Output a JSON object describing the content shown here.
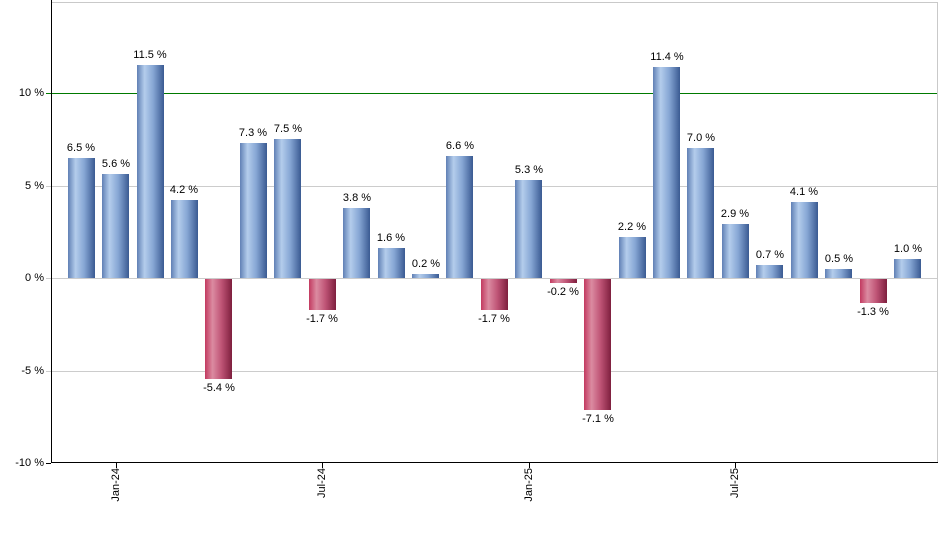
{
  "chart_data": {
    "type": "bar",
    "title": "",
    "xlabel": "",
    "ylabel": "",
    "ylim": [
      -10,
      14.9
    ],
    "grid": true,
    "legend": false,
    "y_ticks": [
      {
        "value": 10,
        "label": "10 %"
      },
      {
        "value": 5,
        "label": "5 %"
      },
      {
        "value": 0,
        "label": "0 %"
      },
      {
        "value": -5,
        "label": "-5 %"
      },
      {
        "value": -10,
        "label": "-10 %"
      }
    ],
    "x_ticks": [
      {
        "index": 1,
        "label": "Jan-24"
      },
      {
        "index": 7,
        "label": "Jul-24"
      },
      {
        "index": 13,
        "label": "Jan-25"
      },
      {
        "index": 19,
        "label": "Jul-25"
      }
    ],
    "reference_line": {
      "value": 10
    },
    "points": [
      {
        "month": "Dec-23",
        "value": 6.5,
        "label": "6.5 %"
      },
      {
        "month": "Jan-24",
        "value": 5.6,
        "label": "5.6 %"
      },
      {
        "month": "Feb-24",
        "value": 11.5,
        "label": "11.5 %"
      },
      {
        "month": "Mar-24",
        "value": 4.2,
        "label": "4.2 %"
      },
      {
        "month": "Apr-24",
        "value": -5.4,
        "label": "-5.4 %"
      },
      {
        "month": "May-24",
        "value": 7.3,
        "label": "7.3 %"
      },
      {
        "month": "Jun-24",
        "value": 7.5,
        "label": "7.5 %"
      },
      {
        "month": "Jul-24",
        "value": -1.7,
        "label": "-1.7 %"
      },
      {
        "month": "Aug-24",
        "value": 3.8,
        "label": "3.8 %"
      },
      {
        "month": "Sep-24",
        "value": 1.6,
        "label": "1.6 %"
      },
      {
        "month": "Oct-24",
        "value": 0.2,
        "label": "0.2 %"
      },
      {
        "month": "Nov-24",
        "value": 6.6,
        "label": "6.6 %"
      },
      {
        "month": "Dec-24",
        "value": -1.7,
        "label": "-1.7 %"
      },
      {
        "month": "Jan-25",
        "value": 5.3,
        "label": "5.3 %"
      },
      {
        "month": "Feb-25",
        "value": -0.2,
        "label": "-0.2 %"
      },
      {
        "month": "Mar-25",
        "value": -7.1,
        "label": "-7.1 %"
      },
      {
        "month": "Apr-25",
        "value": 2.2,
        "label": "2.2 %"
      },
      {
        "month": "May-25",
        "value": 11.4,
        "label": "11.4 %"
      },
      {
        "month": "Jun-25",
        "value": 7.0,
        "label": "7.0 %"
      },
      {
        "month": "Jul-25",
        "value": 2.9,
        "label": "2.9 %"
      },
      {
        "month": "Aug-25",
        "value": 0.7,
        "label": "0.7 %"
      },
      {
        "month": "Sep-25",
        "value": 4.1,
        "label": "4.1 %"
      },
      {
        "month": "Oct-25",
        "value": 0.5,
        "label": "0.5 %"
      },
      {
        "month": "Nov-25",
        "value": -1.3,
        "label": "-1.3 %"
      },
      {
        "month": "Dec-25",
        "value": 1.0,
        "label": "1.0 %"
      }
    ]
  },
  "colors": {
    "positive_bar_gradient": [
      "#6080b5",
      "#b4cdec",
      "#86a6d4",
      "#3a5a92"
    ],
    "negative_bar_gradient": [
      "#c23a60",
      "#db8ba1",
      "#c05577",
      "#7e1f3e"
    ],
    "reference_line": "#007a00",
    "gridline": "#cccccc",
    "plot_border": "#c9c9c9",
    "axis": "#000000",
    "label_text": "#000000",
    "background": "#ffffff"
  }
}
